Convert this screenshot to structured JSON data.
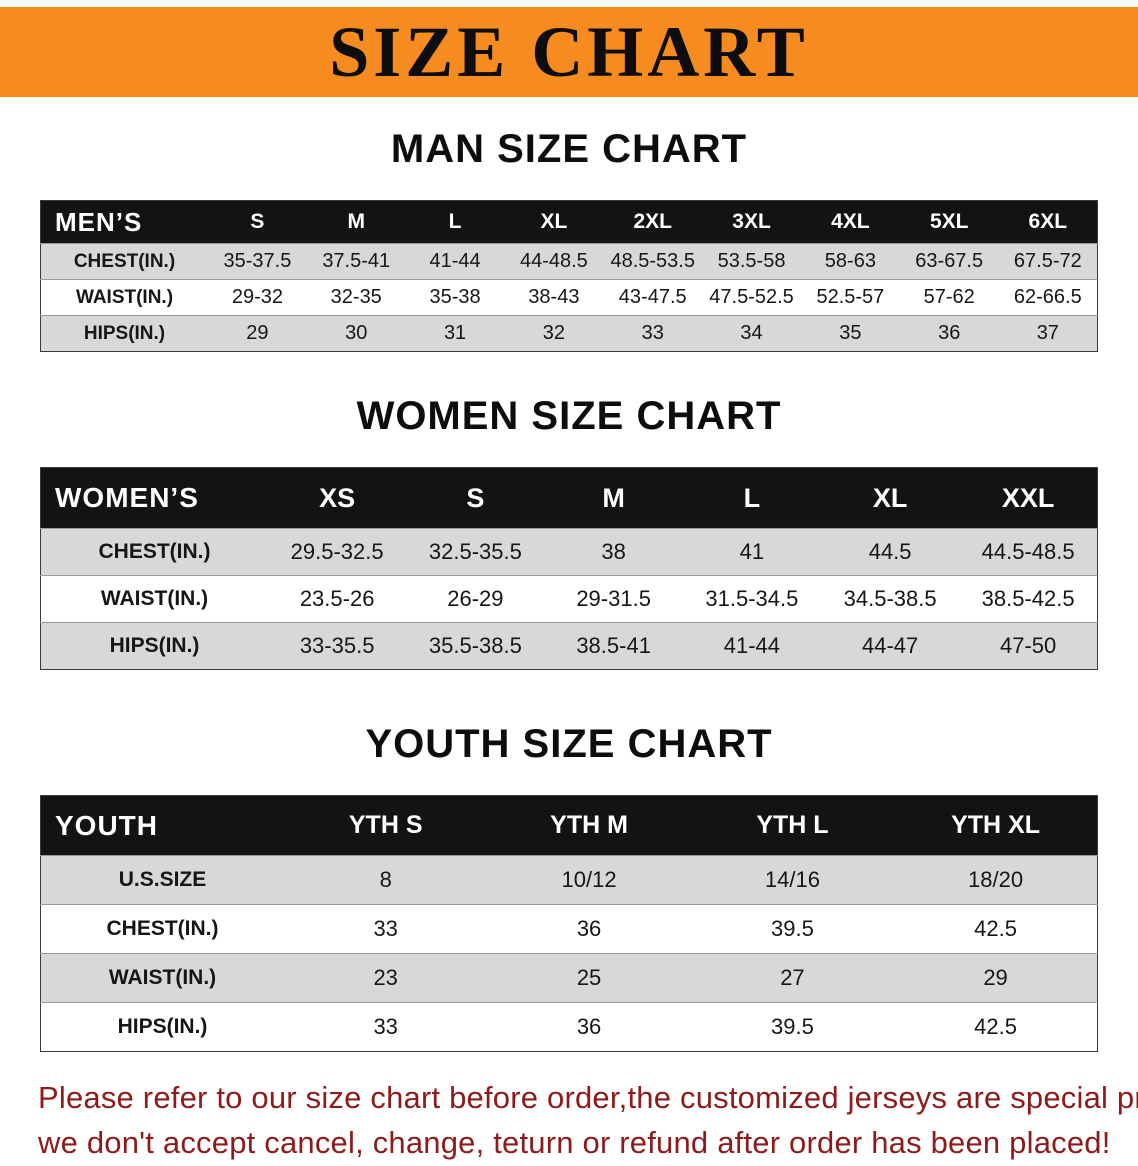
{
  "banner": {
    "title": "SIZE CHART",
    "bg_color": "#f68b1f",
    "text_color": "#0d0d0d"
  },
  "colors": {
    "table_header_bg": "#131313",
    "table_header_text": "#ffffff",
    "row_stripe": "#d8d8d8",
    "footer_text": "#8e1b1b"
  },
  "tables": [
    {
      "variant": "men",
      "heading": "MAN SIZE CHART",
      "header_label": "MEN’S",
      "sizes": [
        "S",
        "M",
        "L",
        "XL",
        "2XL",
        "3XL",
        "4XL",
        "5XL",
        "6XL"
      ],
      "rows": [
        {
          "label": "CHEST(IN.)",
          "values": [
            "35-37.5",
            "37.5-41",
            "41-44",
            "44-48.5",
            "48.5-53.5",
            "53.5-58",
            "58-63",
            "63-67.5",
            "67.5-72"
          ]
        },
        {
          "label": "WAIST(IN.)",
          "values": [
            "29-32",
            "32-35",
            "35-38",
            "38-43",
            "43-47.5",
            "47.5-52.5",
            "52.5-57",
            "57-62",
            "62-66.5"
          ]
        },
        {
          "label": "HIPS(IN.)",
          "values": [
            "29",
            "30",
            "31",
            "32",
            "33",
            "34",
            "35",
            "36",
            "37"
          ]
        }
      ]
    },
    {
      "variant": "women",
      "heading": "WOMEN SIZE CHART",
      "header_label": "WOMEN’S",
      "sizes": [
        "XS",
        "S",
        "M",
        "L",
        "XL",
        "XXL"
      ],
      "rows": [
        {
          "label": "CHEST(IN.)",
          "values": [
            "29.5-32.5",
            "32.5-35.5",
            "38",
            "41",
            "44.5",
            "44.5-48.5"
          ]
        },
        {
          "label": "WAIST(IN.)",
          "values": [
            "23.5-26",
            "26-29",
            "29-31.5",
            "31.5-34.5",
            "34.5-38.5",
            "38.5-42.5"
          ]
        },
        {
          "label": "HIPS(IN.)",
          "values": [
            "33-35.5",
            "35.5-38.5",
            "38.5-41",
            "41-44",
            "44-47",
            "47-50"
          ]
        }
      ]
    },
    {
      "variant": "youth",
      "heading": "YOUTH SIZE CHART",
      "header_label": "YOUTH",
      "sizes": [
        "YTH S",
        "YTH M",
        "YTH L",
        "YTH XL"
      ],
      "rows": [
        {
          "label": "U.S.SIZE",
          "values": [
            "8",
            "10/12",
            "14/16",
            "18/20"
          ]
        },
        {
          "label": "CHEST(IN.)",
          "values": [
            "33",
            "36",
            "39.5",
            "42.5"
          ]
        },
        {
          "label": "WAIST(IN.)",
          "values": [
            "23",
            "25",
            "27",
            "29"
          ]
        },
        {
          "label": "HIPS(IN.)",
          "values": [
            "33",
            "36",
            "39.5",
            "42.5"
          ]
        }
      ]
    }
  ],
  "footer": {
    "line1": "Please refer to our size chart before order,the customized jerseys are special products,",
    "line2": "we don't accept cancel, change, teturn or refund after order has been placed!"
  }
}
